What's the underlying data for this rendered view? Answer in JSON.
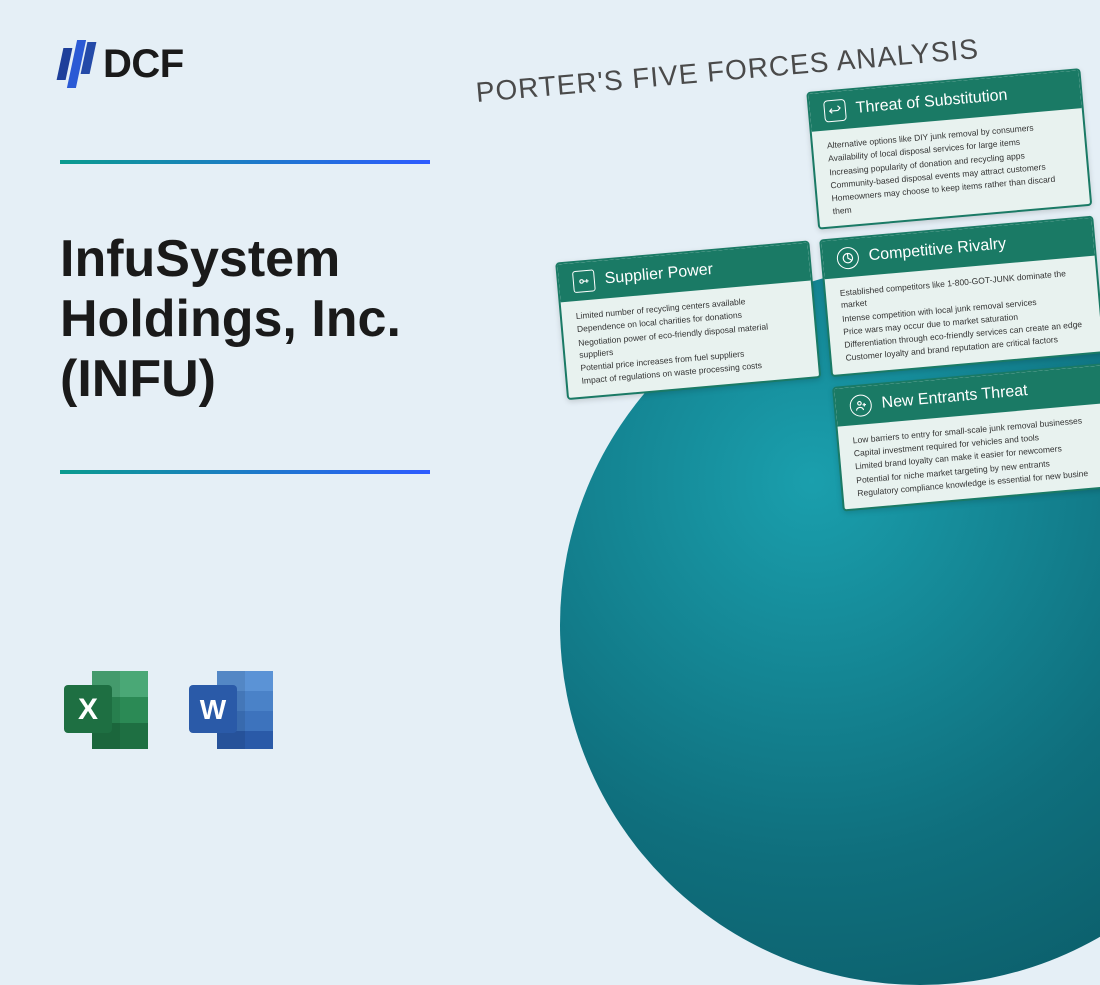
{
  "logo": {
    "text": "DCF"
  },
  "title": "InfuSystem Holdings, Inc. (INFU)",
  "diagram_title": "PORTER'S FIVE FORCES ANALYSIS",
  "colors": {
    "background": "#e5eff6",
    "card_header": "#1a7a65",
    "card_body": "#e8f2ef",
    "circle_gradient_start": "#1a9fad",
    "circle_gradient_end": "#0a5560",
    "divider_start": "#0a9b8e",
    "divider_end": "#2e5bff"
  },
  "file_icons": {
    "excel": {
      "letter": "X",
      "front": "#1e6f42",
      "back_light": "#4aa876",
      "back_mid": "#2b8a55",
      "back_dark": "#1e6f42"
    },
    "word": {
      "letter": "W",
      "front": "#2a5aa8",
      "back_light": "#5b93d6",
      "back_mid": "#3d73bd",
      "back_dark": "#2a5aa8"
    }
  },
  "cards": {
    "substitution": {
      "title": "Threat of Substitution",
      "items": [
        "Alternative options like DIY junk removal by consumers",
        "Availability of local disposal services for large items",
        "Increasing popularity of donation and recycling apps",
        "Community-based disposal events may attract customers",
        "Homeowners may choose to keep items rather than discard them"
      ]
    },
    "supplier": {
      "title": "Supplier Power",
      "items": [
        "Limited number of recycling centers available",
        "Dependence on local charities for donations",
        "Negotiation power of eco-friendly disposal material suppliers",
        "Potential price increases from fuel suppliers",
        "Impact of regulations on waste processing costs"
      ]
    },
    "rivalry": {
      "title": "Competitive Rivalry",
      "items": [
        "Established competitors like 1-800-GOT-JUNK dominate the market",
        "Intense competition with local junk removal services",
        "Price wars may occur due to market saturation",
        "Differentiation through eco-friendly services can create an edge",
        "Customer loyalty and brand reputation are critical factors"
      ]
    },
    "entrants": {
      "title": "New Entrants Threat",
      "items": [
        "Low barriers to entry for small-scale junk removal businesses",
        "Capital investment required for vehicles and tools",
        "Limited brand loyalty can make it easier for newcomers",
        "Potential for niche market targeting by new entrants",
        "Regulatory compliance knowledge is essential for new busine"
      ]
    }
  }
}
